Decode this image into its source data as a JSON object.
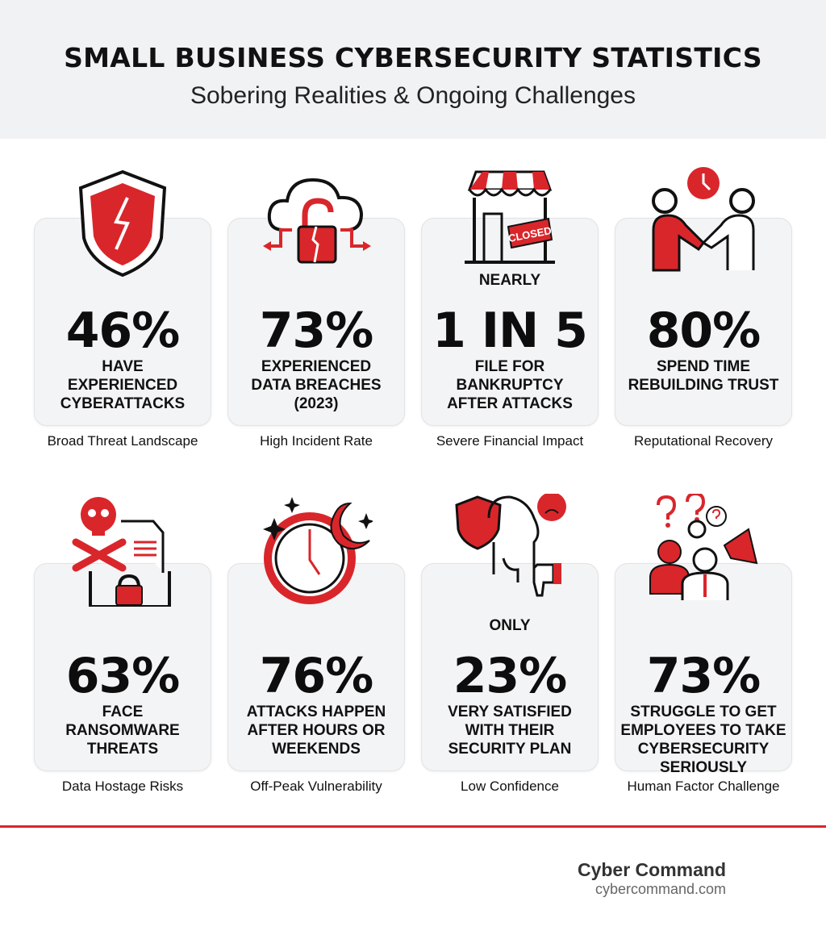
{
  "header": {
    "title": "SMALL BUSINESS CYBERSECURITY STATISTICS",
    "subtitle": "Sobering Realities & Ongoing Challenges"
  },
  "colors": {
    "accent": "#d9262b",
    "card_bg": "#f3f4f5",
    "header_bg": "#f1f2f3"
  },
  "stats": [
    {
      "icon": "broken-shield-icon",
      "pre": "",
      "number": "46%",
      "desc": [
        "HAVE",
        "EXPERIENCED",
        "CYBERATTACKS"
      ],
      "caption": "Broad Threat Landscape"
    },
    {
      "icon": "cloud-broken-lock-icon",
      "pre": "",
      "number": "73%",
      "desc": [
        "EXPERIENCED",
        "DATA BREACHES",
        "(2023)"
      ],
      "caption": "High Incident Rate"
    },
    {
      "icon": "closed-store-icon",
      "pre": "NEARLY",
      "number": "1 IN 5",
      "desc": [
        "FILE FOR",
        "BANKRUPTCY",
        "AFTER ATTACKS"
      ],
      "caption": "Severe Financial Impact",
      "sign": "CLOSED"
    },
    {
      "icon": "handshake-clock-icon",
      "pre": "",
      "number": "80%",
      "desc": [
        "SPEND TIME",
        "REBUILDING TRUST",
        ""
      ],
      "caption": "Reputational Recovery"
    },
    {
      "icon": "skull-folder-lock-icon",
      "pre": "",
      "number": "63%",
      "desc": [
        "FACE",
        "RANSOMWARE",
        "THREATS"
      ],
      "caption": "Data Hostage Risks"
    },
    {
      "icon": "clock-moon-icon",
      "pre": "",
      "number": "76%",
      "desc": [
        "ATTACKS HAPPEN",
        "AFTER HOURS OR",
        "WEEKENDS"
      ],
      "caption": "Off-Peak Vulnerability"
    },
    {
      "icon": "head-shield-thumbs-down-icon",
      "pre": "ONLY",
      "number": "23%",
      "desc": [
        "VERY SATISFIED",
        "WITH THEIR",
        "SECURITY PLAN"
      ],
      "caption": "Low Confidence"
    },
    {
      "icon": "confused-employees-megaphone-icon",
      "pre": "",
      "number": "73%",
      "desc": [
        "STRUGGLE TO GET",
        "EMPLOYEES TO TAKE",
        "CYBERSECURITY",
        "SERIOUSLY"
      ],
      "caption": "Human Factor Challenge"
    }
  ],
  "footer": {
    "brand": "Cyber Command",
    "url": "cybercommand.com"
  }
}
